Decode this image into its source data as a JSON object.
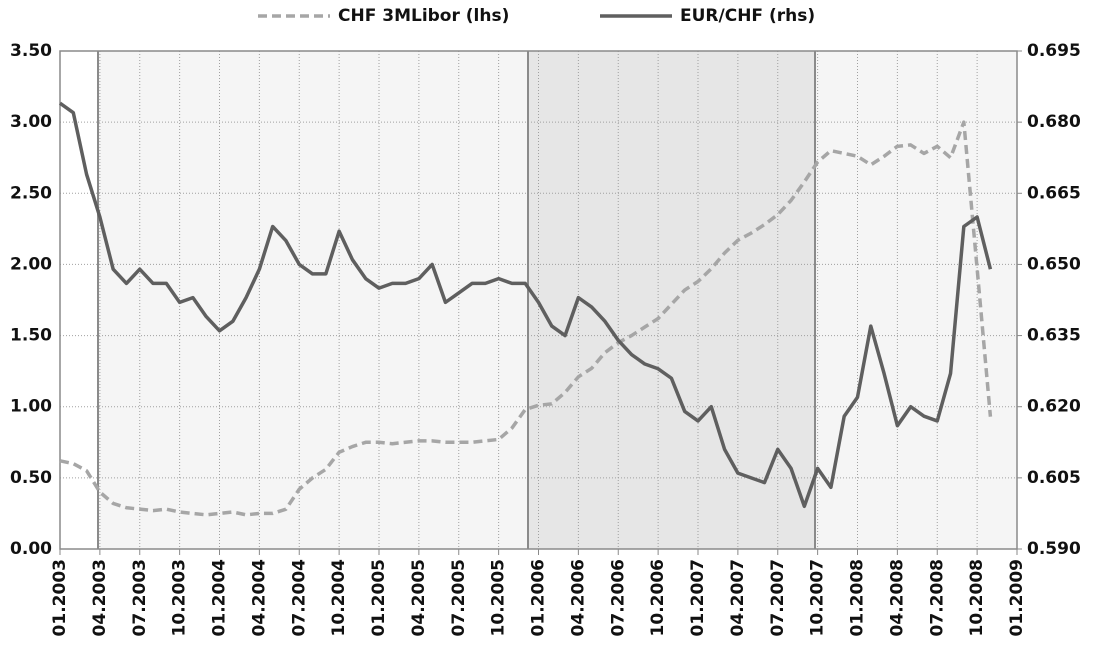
{
  "chart_data": {
    "type": "line",
    "categories": [
      "01.2003",
      null,
      null,
      "04.2003",
      null,
      null,
      "07.2003",
      null,
      null,
      "10.2003",
      null,
      null,
      "01.2004",
      null,
      null,
      "04.2004",
      null,
      null,
      "07.2004",
      null,
      null,
      "10.2004",
      null,
      null,
      "01.2005",
      null,
      null,
      "04.2005",
      null,
      null,
      "07.2005",
      null,
      null,
      "10.2005",
      null,
      null,
      "01.2006",
      null,
      null,
      "04.2006",
      null,
      null,
      "07.2006",
      null,
      null,
      "10.2006",
      null,
      null,
      "01.2007",
      null,
      null,
      "04.2007",
      null,
      null,
      "07.2007",
      null,
      null,
      "10.2007",
      null,
      null,
      "01.2008",
      null,
      null,
      "04.2008",
      null,
      null,
      "07.2008",
      null,
      null,
      "10.2008",
      null,
      null,
      "01.2009"
    ],
    "series": [
      {
        "name": "CHF 3MLibor (lhs)",
        "color": "#a6a6a6",
        "dashed": true,
        "values": [
          0.62,
          0.6,
          0.55,
          0.4,
          0.32,
          0.29,
          0.28,
          0.27,
          0.28,
          0.26,
          0.25,
          0.24,
          0.25,
          0.26,
          0.24,
          0.25,
          0.25,
          0.28,
          0.42,
          0.5,
          0.56,
          0.68,
          0.72,
          0.75,
          0.75,
          0.74,
          0.75,
          0.76,
          0.76,
          0.75,
          0.75,
          0.75,
          0.76,
          0.77,
          0.85,
          0.98,
          1.01,
          1.02,
          1.1,
          1.21,
          1.27,
          1.38,
          1.45,
          1.5,
          1.56,
          1.62,
          1.72,
          1.82,
          1.88,
          1.97,
          2.08,
          2.17,
          2.22,
          2.28,
          2.35,
          2.45,
          2.58,
          2.72,
          2.8,
          2.78,
          2.76,
          2.7,
          2.76,
          2.83,
          2.84,
          2.78,
          2.83,
          2.75,
          3.0,
          1.97,
          0.93,
          null,
          null
        ]
      },
      {
        "name": "EUR/CHF (rhs)",
        "color": "#5f5f5f",
        "axis": "y2",
        "values": [
          0.684,
          0.682,
          0.669,
          0.66,
          0.649,
          0.646,
          0.649,
          0.646,
          0.646,
          0.642,
          0.643,
          0.639,
          0.636,
          0.638,
          0.643,
          0.649,
          0.658,
          0.655,
          0.65,
          0.648,
          0.648,
          0.657,
          0.651,
          0.647,
          0.645,
          0.646,
          0.646,
          0.647,
          0.65,
          0.642,
          0.644,
          0.646,
          0.646,
          0.647,
          0.646,
          0.646,
          0.642,
          0.637,
          0.635,
          0.643,
          0.641,
          0.638,
          0.634,
          0.631,
          0.629,
          0.628,
          0.626,
          0.619,
          0.617,
          0.62,
          0.611,
          0.606,
          0.605,
          0.604,
          0.611,
          0.607,
          0.599,
          0.607,
          0.603,
          0.618,
          0.622,
          0.637,
          0.627,
          0.616,
          0.62,
          0.618,
          0.617,
          0.627,
          0.658,
          0.66,
          0.649,
          null,
          null
        ]
      }
    ],
    "ylim": [
      0,
      3.5
    ],
    "yticks": [
      {
        "value": 0,
        "label": "0.00"
      },
      {
        "value": 0.5,
        "label": "0.50"
      },
      {
        "value": 1,
        "label": "1.00"
      },
      {
        "value": 1.5,
        "label": "1.50"
      },
      {
        "value": 2,
        "label": "2.00"
      },
      {
        "value": 2.5,
        "label": "2.50"
      },
      {
        "value": 3,
        "label": "3.00"
      },
      {
        "value": 3.5,
        "label": "3.50"
      }
    ],
    "y2lim": [
      0.59,
      0.695
    ],
    "y2ticks": [
      {
        "value": 0.59,
        "label": "0.590"
      },
      0.605,
      {
        "value": 0.62,
        "label": "0.620"
      },
      0.635,
      {
        "value": 0.65,
        "label": "0.650"
      },
      0.665,
      {
        "value": 0.68,
        "label": "0.680"
      },
      0.695
    ],
    "grid": true
  }
}
